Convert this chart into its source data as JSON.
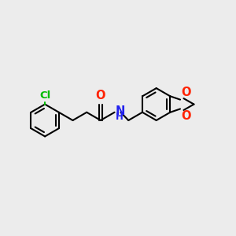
{
  "bg_color": "#ececec",
  "bond_color": "#000000",
  "cl_color": "#00bb00",
  "o_color": "#ff2200",
  "n_color": "#2222ee",
  "lw": 1.5,
  "dbo": 0.055,
  "fs": 9.5,
  "xlim": [
    -3.8,
    4.2
  ],
  "ylim": [
    -2.3,
    2.3
  ]
}
